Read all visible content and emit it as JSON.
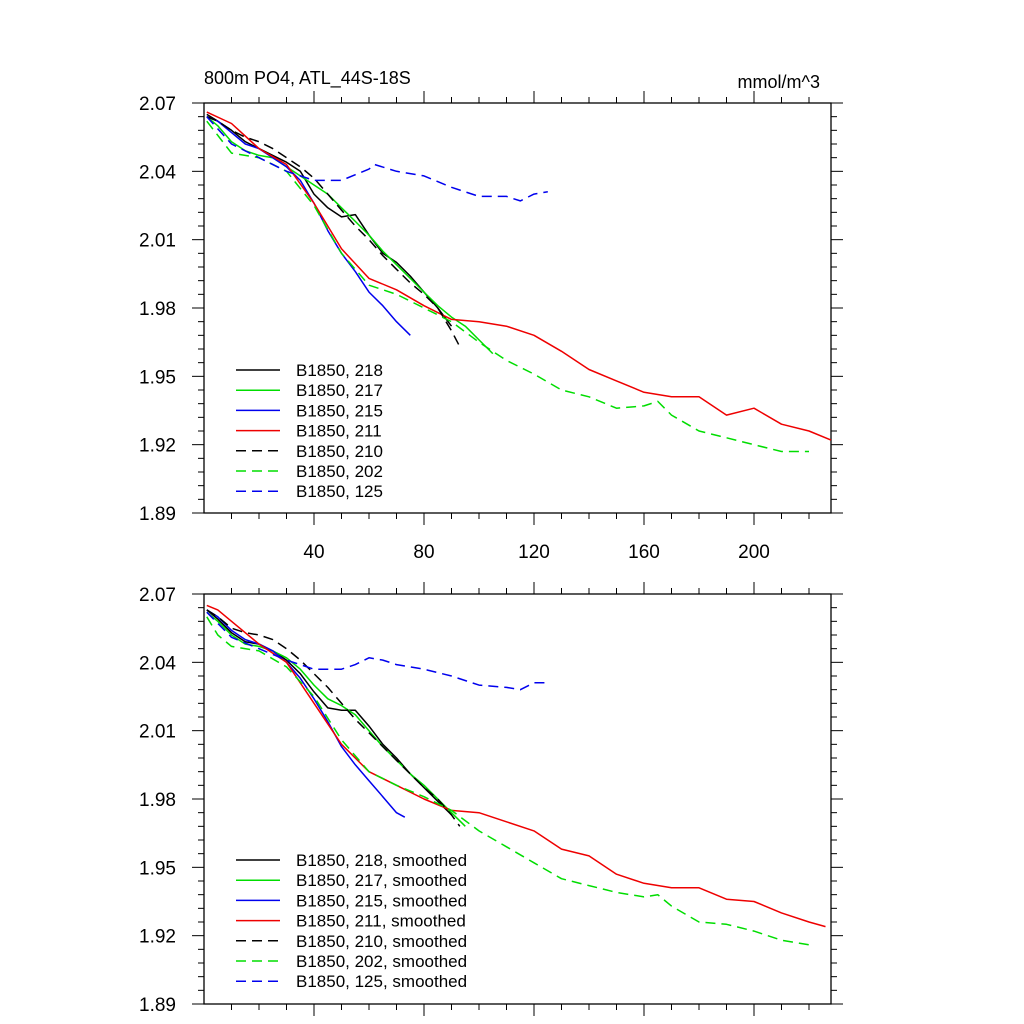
{
  "header": {
    "title": "800m PO4, ATL_44S-18S",
    "units": "mmol/m^3"
  },
  "chart_data": [
    {
      "type": "line",
      "title": "800m PO4, ATL_44S-18S",
      "units": "mmol/m^3",
      "xlim": [
        0,
        228
      ],
      "ylim": [
        1.89,
        2.07
      ],
      "yticks": [
        "1.89",
        "1.92",
        "1.95",
        "1.98",
        "2.01",
        "2.04",
        "2.07"
      ],
      "xticks": [
        "40",
        "80",
        "120",
        "160",
        "200"
      ],
      "legend_location": "lower-left",
      "series": [
        {
          "name": "B1850, 218",
          "color": "#000000",
          "dash": "solid",
          "x": [
            1,
            5,
            10,
            15,
            20,
            25,
            30,
            35,
            40,
            45,
            50,
            55,
            60,
            65,
            70,
            75,
            80,
            85,
            90
          ],
          "y": [
            2.065,
            2.062,
            2.058,
            2.053,
            2.05,
            2.047,
            2.044,
            2.04,
            2.03,
            2.024,
            2.02,
            2.021,
            2.012,
            2.004,
            2.0,
            1.994,
            1.987,
            1.98,
            1.972
          ]
        },
        {
          "name": "B1850, 217",
          "color": "#00dd00",
          "dash": "solid",
          "x": [
            1,
            5,
            10,
            15,
            20,
            25,
            30,
            35,
            40,
            45,
            50,
            55,
            60,
            65,
            70,
            75,
            80,
            85,
            90,
            95,
            100,
            105
          ],
          "y": [
            2.064,
            2.06,
            2.053,
            2.049,
            2.047,
            2.046,
            2.042,
            2.038,
            2.034,
            2.03,
            2.024,
            2.018,
            2.012,
            2.005,
            1.999,
            1.993,
            1.987,
            1.981,
            1.976,
            1.972,
            1.966,
            1.96
          ]
        },
        {
          "name": "B1850, 215",
          "color": "#0000ee",
          "dash": "solid",
          "x": [
            1,
            5,
            10,
            15,
            20,
            25,
            30,
            35,
            40,
            45,
            50,
            55,
            60,
            65,
            70,
            75
          ],
          "y": [
            2.064,
            2.062,
            2.057,
            2.052,
            2.05,
            2.046,
            2.042,
            2.036,
            2.026,
            2.014,
            2.004,
            1.996,
            1.987,
            1.981,
            1.974,
            1.968
          ]
        },
        {
          "name": "B1850, 211",
          "color": "#ee0000",
          "dash": "solid",
          "x": [
            1,
            10,
            20,
            30,
            40,
            50,
            60,
            70,
            80,
            90,
            100,
            110,
            120,
            130,
            140,
            150,
            160,
            170,
            180,
            190,
            200,
            210,
            220,
            228
          ],
          "y": [
            2.066,
            2.061,
            2.05,
            2.043,
            2.026,
            2.006,
            1.993,
            1.988,
            1.981,
            1.975,
            1.974,
            1.972,
            1.968,
            1.961,
            1.953,
            1.948,
            1.943,
            1.941,
            1.941,
            1.933,
            1.936,
            1.929,
            1.926,
            1.922
          ]
        },
        {
          "name": "B1850, 210",
          "color": "#000000",
          "dash": "dashed",
          "x": [
            1,
            5,
            10,
            15,
            20,
            25,
            30,
            35,
            40,
            45,
            50,
            55,
            60,
            65,
            70,
            75,
            80,
            85,
            90,
            93
          ],
          "y": [
            2.064,
            2.062,
            2.058,
            2.055,
            2.053,
            2.05,
            2.046,
            2.042,
            2.037,
            2.03,
            2.023,
            2.016,
            2.01,
            2.003,
            1.997,
            1.991,
            1.986,
            1.98,
            1.97,
            1.963
          ]
        },
        {
          "name": "B1850, 202",
          "color": "#00dd00",
          "dash": "dashed",
          "x": [
            1,
            10,
            20,
            30,
            40,
            50,
            60,
            70,
            80,
            90,
            100,
            110,
            120,
            130,
            140,
            150,
            160,
            165,
            170,
            180,
            190,
            200,
            210,
            220
          ],
          "y": [
            2.062,
            2.048,
            2.046,
            2.04,
            2.025,
            2.004,
            1.99,
            1.986,
            1.98,
            1.974,
            1.965,
            1.957,
            1.951,
            1.944,
            1.941,
            1.936,
            1.937,
            1.939,
            1.933,
            1.926,
            1.923,
            1.92,
            1.917,
            1.917
          ]
        },
        {
          "name": "B1850, 125",
          "color": "#0000ee",
          "dash": "dashed",
          "x": [
            1,
            10,
            20,
            30,
            40,
            50,
            60,
            62,
            70,
            80,
            90,
            100,
            110,
            115,
            120,
            125
          ],
          "y": [
            2.064,
            2.052,
            2.046,
            2.04,
            2.036,
            2.036,
            2.041,
            2.043,
            2.04,
            2.038,
            2.033,
            2.029,
            2.029,
            2.027,
            2.03,
            2.031
          ]
        }
      ]
    },
    {
      "type": "line",
      "xlim": [
        0,
        228
      ],
      "ylim": [
        1.89,
        2.07
      ],
      "yticks": [
        "1.89",
        "1.92",
        "1.95",
        "1.98",
        "2.01",
        "2.04",
        "2.07"
      ],
      "legend_location": "lower-left",
      "series": [
        {
          "name": "B1850, 218, smoothed",
          "color": "#000000",
          "dash": "solid",
          "x": [
            1,
            5,
            10,
            15,
            20,
            25,
            30,
            35,
            40,
            45,
            50,
            55,
            60,
            65,
            70,
            75,
            80,
            85,
            90
          ],
          "y": [
            2.063,
            2.059,
            2.053,
            2.049,
            2.048,
            2.045,
            2.041,
            2.035,
            2.027,
            2.02,
            2.019,
            2.019,
            2.012,
            2.004,
            1.998,
            1.991,
            1.985,
            1.979,
            1.973
          ]
        },
        {
          "name": "B1850, 217, smoothed",
          "color": "#00dd00",
          "dash": "solid",
          "x": [
            1,
            5,
            10,
            15,
            20,
            25,
            30,
            35,
            40,
            45,
            50,
            55,
            60,
            65,
            70,
            75,
            80,
            85,
            90,
            95
          ],
          "y": [
            2.062,
            2.058,
            2.052,
            2.048,
            2.047,
            2.045,
            2.042,
            2.037,
            2.03,
            2.024,
            2.021,
            2.017,
            2.01,
            2.003,
            1.997,
            1.991,
            1.986,
            1.98,
            1.974,
            1.968
          ]
        },
        {
          "name": "B1850, 215, smoothed",
          "color": "#0000ee",
          "dash": "solid",
          "x": [
            1,
            5,
            10,
            15,
            20,
            25,
            30,
            35,
            40,
            45,
            50,
            55,
            60,
            65,
            70,
            73
          ],
          "y": [
            2.063,
            2.06,
            2.054,
            2.05,
            2.048,
            2.045,
            2.04,
            2.033,
            2.024,
            2.014,
            2.003,
            1.995,
            1.988,
            1.981,
            1.974,
            1.972
          ]
        },
        {
          "name": "B1850, 211, smoothed",
          "color": "#ee0000",
          "dash": "solid",
          "x": [
            1,
            5,
            10,
            20,
            30,
            40,
            50,
            60,
            70,
            80,
            90,
            100,
            110,
            120,
            130,
            140,
            150,
            160,
            170,
            180,
            190,
            200,
            210,
            220,
            226
          ],
          "y": [
            2.065,
            2.063,
            2.058,
            2.048,
            2.04,
            2.022,
            2.004,
            1.992,
            1.986,
            1.98,
            1.975,
            1.974,
            1.97,
            1.966,
            1.958,
            1.955,
            1.947,
            1.943,
            1.941,
            1.941,
            1.936,
            1.935,
            1.93,
            1.926,
            1.924
          ]
        },
        {
          "name": "B1850, 210, smoothed",
          "color": "#000000",
          "dash": "dashed",
          "x": [
            1,
            5,
            10,
            15,
            20,
            25,
            30,
            35,
            40,
            45,
            50,
            55,
            60,
            65,
            70,
            75,
            80,
            85,
            90,
            93
          ],
          "y": [
            2.063,
            2.06,
            2.055,
            2.053,
            2.052,
            2.05,
            2.046,
            2.041,
            2.035,
            2.029,
            2.022,
            2.015,
            2.009,
            2.003,
            1.997,
            1.991,
            1.985,
            1.98,
            1.973,
            1.968
          ]
        },
        {
          "name": "B1850, 202, smoothed",
          "color": "#00dd00",
          "dash": "dashed",
          "x": [
            1,
            5,
            10,
            20,
            30,
            40,
            50,
            60,
            70,
            80,
            90,
            100,
            110,
            120,
            130,
            140,
            150,
            160,
            165,
            170,
            180,
            190,
            200,
            210,
            220
          ],
          "y": [
            2.06,
            2.052,
            2.047,
            2.045,
            2.038,
            2.025,
            2.006,
            1.992,
            1.986,
            1.981,
            1.975,
            1.966,
            1.959,
            1.952,
            1.945,
            1.942,
            1.939,
            1.937,
            1.938,
            1.933,
            1.926,
            1.925,
            1.922,
            1.918,
            1.916
          ]
        },
        {
          "name": "B1850, 125, smoothed",
          "color": "#0000ee",
          "dash": "dashed",
          "x": [
            1,
            10,
            20,
            30,
            40,
            50,
            55,
            60,
            65,
            70,
            80,
            90,
            100,
            110,
            115,
            120,
            125
          ],
          "y": [
            2.062,
            2.051,
            2.046,
            2.041,
            2.037,
            2.037,
            2.039,
            2.042,
            2.041,
            2.039,
            2.037,
            2.034,
            2.03,
            2.029,
            2.028,
            2.031,
            2.031
          ]
        }
      ]
    }
  ]
}
